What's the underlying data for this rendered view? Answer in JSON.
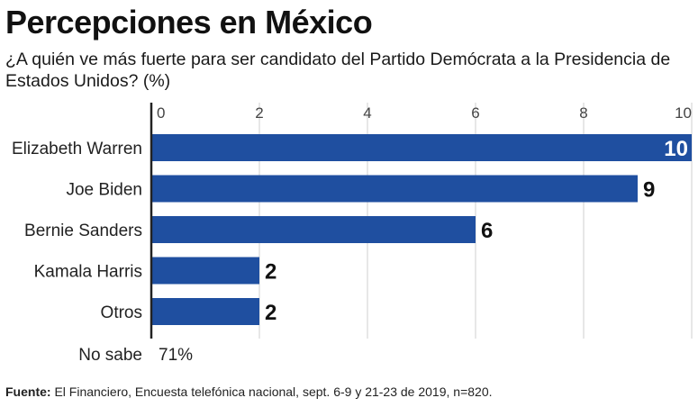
{
  "chart_data": {
    "type": "bar",
    "orientation": "horizontal",
    "title": "Percepciones en México",
    "subtitle": "¿A quién ve más fuerte para ser candidato del Partido Demócrata a la Presidencia de Estados Unidos? (%)",
    "categories": [
      "Elizabeth Warren",
      "Joe Biden",
      "Bernie Sanders",
      "Kamala Harris",
      "Otros"
    ],
    "values": [
      10,
      9,
      6,
      2,
      2
    ],
    "data_labels": [
      "10",
      "9",
      "6",
      "2",
      "2"
    ],
    "xlim": [
      0,
      10
    ],
    "xticks": [
      0,
      2,
      4,
      6,
      8,
      10
    ],
    "xtick_labels": [
      "0",
      "2",
      "4",
      "6",
      "8",
      "10"
    ],
    "grid": true,
    "bar_color": "#1f4fa0",
    "extra_row": {
      "label": "No sabe",
      "value_text": "71%"
    }
  },
  "source": {
    "prefix": "Fuente:",
    "text": " El Financiero, Encuesta telefónica nacional, sept. 6-9 y 21-23 de 2019, n=820."
  }
}
